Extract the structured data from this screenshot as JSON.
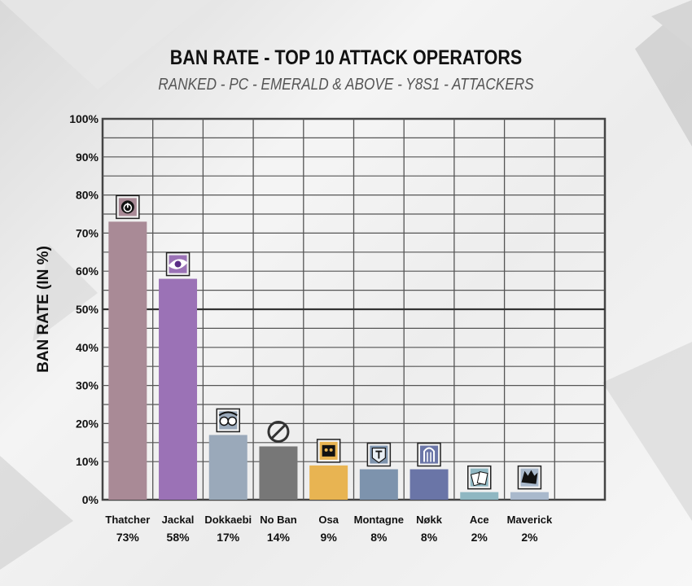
{
  "title": "BAN RATE - TOP 10 ATTACK OPERATORS",
  "subtitle": "RANKED - PC - EMERALD & ABOVE - Y8S1 -  ATTACKERS",
  "chart_data": {
    "type": "bar",
    "ylabel": "BAN RATE (IN %)",
    "ylim": [
      0,
      100
    ],
    "yticks": [
      "0%",
      "10%",
      "20%",
      "30%",
      "40%",
      "50%",
      "60%",
      "70%",
      "80%",
      "90%",
      "100%"
    ],
    "grid": true,
    "categories": [
      "Thatcher",
      "Jackal",
      "Dokkaebi",
      "No Ban",
      "Osa",
      "Montagne",
      "Nøkk",
      "Ace",
      "Maverick"
    ],
    "values": [
      73,
      58,
      17,
      14,
      9,
      8,
      8,
      2,
      2
    ],
    "value_labels": [
      "73%",
      "58%",
      "17%",
      "14%",
      "9%",
      "8%",
      "8%",
      "2%",
      "2%"
    ],
    "colors": [
      "#a98a96",
      "#9b72b6",
      "#9aa9ba",
      "#777777",
      "#e8b452",
      "#7d93ad",
      "#6a75a7",
      "#8fb7c2",
      "#a9b9cc"
    ],
    "icons": [
      "thatcher-emp-icon",
      "jackal-eyenox-icon",
      "dokkaebi-icon",
      "no-ban-icon",
      "osa-icon",
      "montagne-shield-icon",
      "nokk-icon",
      "ace-icon",
      "maverick-icon"
    ]
  }
}
